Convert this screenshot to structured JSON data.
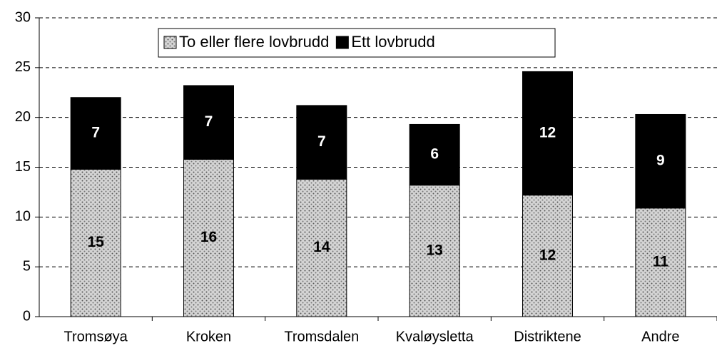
{
  "chart_data": {
    "type": "stacked_bar",
    "categories": [
      "Tromsøya",
      "Kroken",
      "Tromsdalen",
      "Kvaløysletta",
      "Distriktene",
      "Andre"
    ],
    "series": [
      {
        "name": "To eller flere lovbrudd",
        "color": "#d4d4d4",
        "values": [
          14.8,
          15.8,
          13.8,
          13.2,
          12.2,
          10.9
        ],
        "value_labels": [
          "15",
          "16",
          "14",
          "13",
          "12",
          "11"
        ]
      },
      {
        "name": "Ett lovbrudd",
        "color": "#000000",
        "values": [
          7.2,
          7.4,
          7.4,
          6.1,
          12.4,
          9.4
        ],
        "value_labels": [
          "7",
          "7",
          "7",
          "6",
          "12",
          "9"
        ]
      }
    ],
    "ylim": [
      0,
      30
    ],
    "yticks": [
      0,
      5,
      10,
      15,
      20,
      25,
      30
    ],
    "grid": true,
    "legend": "top"
  }
}
